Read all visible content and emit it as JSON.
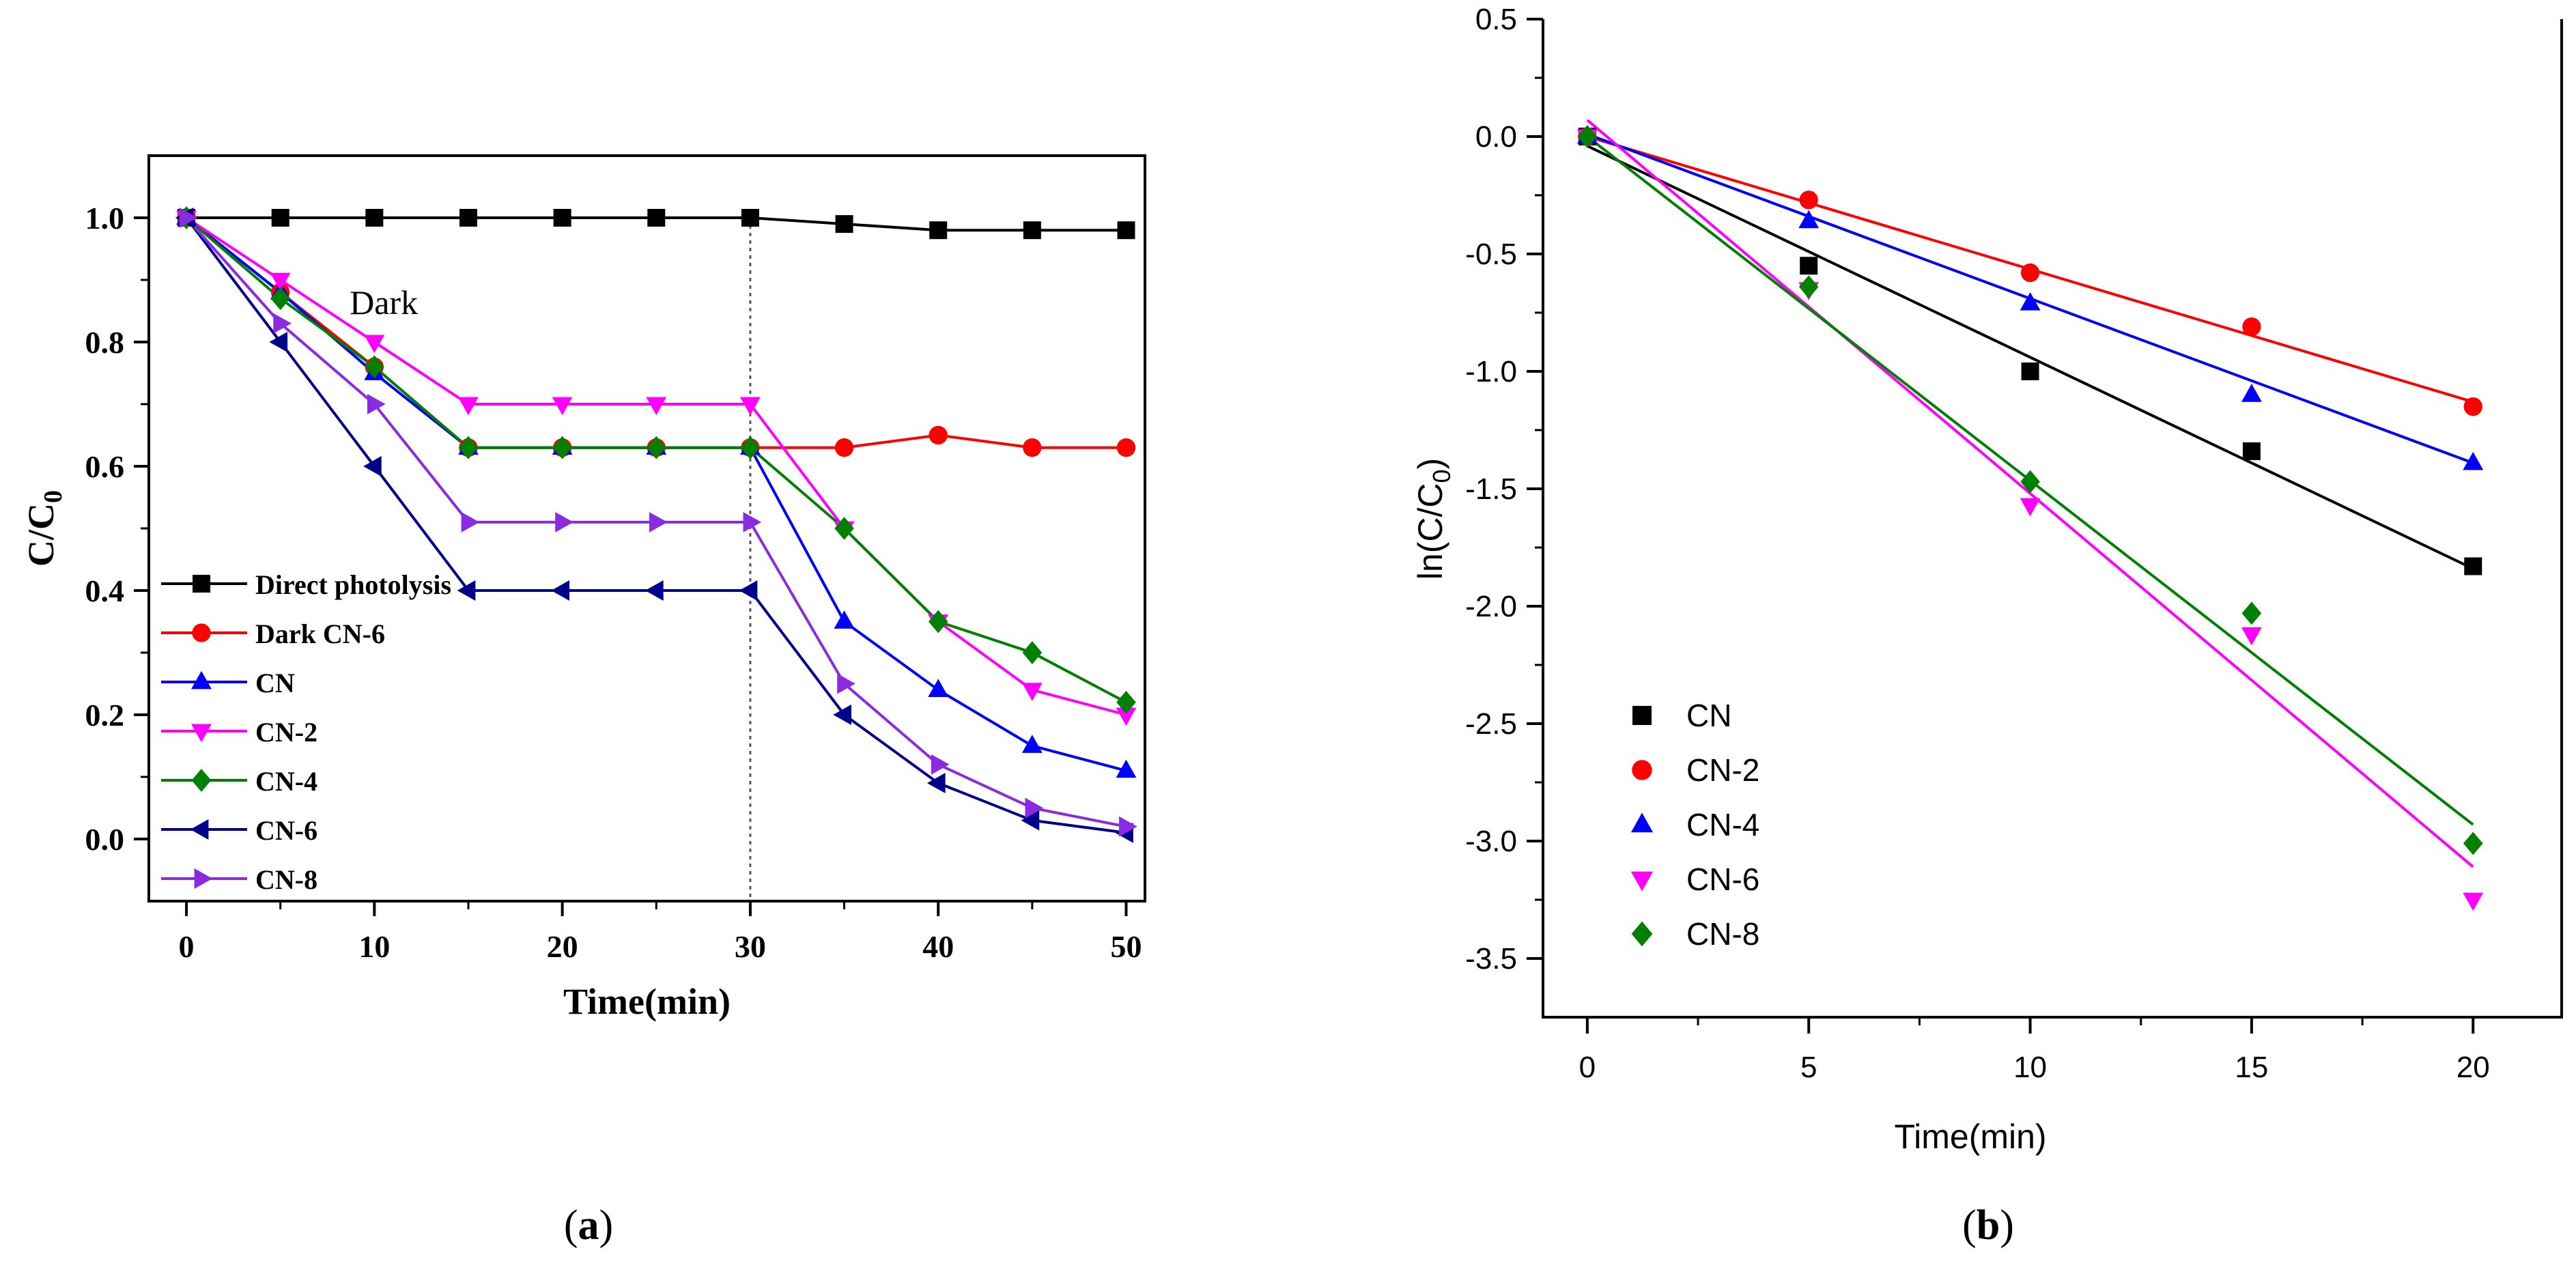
{
  "chart_data": [
    {
      "type": "line",
      "panel_label": "a",
      "title": "",
      "xlabel": "Time(min)",
      "ylabel": "C/C",
      "ylabel_sub": "0",
      "xlim": [
        -2,
        51
      ],
      "ylim": [
        -0.1,
        1.1
      ],
      "xticks": [
        "0",
        "10",
        "20",
        "30",
        "40",
        "50"
      ],
      "yticks": [
        "0.0",
        "0.2",
        "0.4",
        "0.6",
        "0.8",
        "1.0"
      ],
      "annotation": "Dark",
      "vline_x": 30,
      "x": [
        0,
        5,
        10,
        15,
        20,
        25,
        30,
        35,
        40,
        45,
        50
      ],
      "series": [
        {
          "name": "Direct photolysis",
          "color": "#000000",
          "marker": "square",
          "values": [
            1.0,
            1.0,
            1.0,
            1.0,
            1.0,
            1.0,
            1.0,
            0.99,
            0.98,
            0.98,
            0.98
          ]
        },
        {
          "name": "Dark CN-6",
          "color": "#ff0000",
          "marker": "circle",
          "values": [
            1.0,
            0.88,
            0.76,
            0.63,
            0.63,
            0.63,
            0.63,
            0.63,
            0.65,
            0.63,
            0.63
          ]
        },
        {
          "name": "CN",
          "color": "#0000ff",
          "marker": "triangle-up",
          "values": [
            1.0,
            0.88,
            0.75,
            0.63,
            0.63,
            0.63,
            0.63,
            0.35,
            0.24,
            0.15,
            0.11
          ]
        },
        {
          "name": "CN-2",
          "color": "#ff00ff",
          "marker": "triangle-down",
          "values": [
            1.0,
            0.9,
            0.8,
            0.7,
            0.7,
            0.7,
            0.7,
            0.5,
            0.35,
            0.24,
            0.2
          ]
        },
        {
          "name": "CN-4",
          "color": "#008000",
          "marker": "diamond",
          "values": [
            1.0,
            0.87,
            0.76,
            0.63,
            0.63,
            0.63,
            0.63,
            0.5,
            0.35,
            0.3,
            0.22
          ]
        },
        {
          "name": "CN-6",
          "color": "#00008b",
          "marker": "triangle-left",
          "values": [
            1.0,
            0.8,
            0.6,
            0.4,
            0.4,
            0.4,
            0.4,
            0.2,
            0.09,
            0.03,
            0.01
          ]
        },
        {
          "name": "CN-8",
          "color": "#8a2be2",
          "marker": "triangle-right",
          "values": [
            1.0,
            0.83,
            0.7,
            0.51,
            0.51,
            0.51,
            0.51,
            0.25,
            0.12,
            0.05,
            0.02
          ]
        }
      ]
    },
    {
      "type": "scatter",
      "panel_label": "b",
      "title": "",
      "xlabel": "Time(min)",
      "ylabel": "ln(C/C",
      "ylabel_sub": "0",
      "ylabel_close": ")",
      "xlim": [
        -1,
        22
      ],
      "ylim": [
        -3.75,
        0.5
      ],
      "xticks": [
        "0",
        "5",
        "10",
        "15",
        "20"
      ],
      "yticks": [
        "0.5",
        "0.0",
        "-0.5",
        "-1.0",
        "-1.5",
        "-2.0",
        "-2.5",
        "-3.0",
        "-3.5"
      ],
      "x": [
        0,
        5,
        10,
        15,
        20
      ],
      "series": [
        {
          "name": "CN",
          "color": "#000000",
          "marker": "square",
          "values": [
            0.0,
            -0.55,
            -1.0,
            -1.34,
            -1.83
          ],
          "fit": {
            "slope": -0.09,
            "intercept": -0.04
          }
        },
        {
          "name": "CN-2",
          "color": "#ff0000",
          "marker": "circle",
          "values": [
            0.0,
            -0.27,
            -0.58,
            -0.81,
            -1.15
          ],
          "fit": {
            "slope": -0.0565,
            "intercept": 0.0
          }
        },
        {
          "name": "CN-4",
          "color": "#0000ff",
          "marker": "triangle-up",
          "values": [
            0.0,
            -0.36,
            -0.71,
            -1.1,
            -1.39
          ],
          "fit": {
            "slope": -0.07,
            "intercept": 0.01
          }
        },
        {
          "name": "CN-6",
          "color": "#ff00ff",
          "marker": "triangle-down",
          "values": [
            0.0,
            -0.65,
            -1.57,
            -2.12,
            -3.25
          ],
          "fit": {
            "slope": -0.159,
            "intercept": 0.07
          }
        },
        {
          "name": "CN-8",
          "color": "#008000",
          "marker": "diamond",
          "values": [
            0.0,
            -0.64,
            -1.47,
            -2.03,
            -3.01
          ],
          "fit": {
            "slope": -0.1465,
            "intercept": 0.0
          }
        }
      ]
    }
  ]
}
